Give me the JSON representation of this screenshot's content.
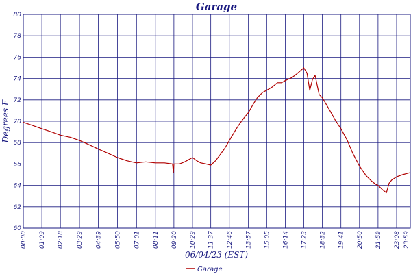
{
  "chart_data": {
    "type": "line",
    "title": "Garage",
    "xlabel": "06/04/23 (EST)",
    "ylabel": "Degrees F",
    "ylim": [
      60,
      80
    ],
    "yticks": [
      60,
      62,
      64,
      66,
      68,
      70,
      72,
      74,
      76,
      78,
      80
    ],
    "xticks": [
      "00:00",
      "01:09",
      "02:18",
      "03:29",
      "04:39",
      "05:50",
      "07:01",
      "08:11",
      "09:20",
      "10:29",
      "11:37",
      "12:46",
      "13:57",
      "15:05",
      "16:14",
      "17:23",
      "18:32",
      "19:41",
      "20:50",
      "21:59",
      "23:08",
      "23:59"
    ],
    "grid": true,
    "legend_position": "bottom-center",
    "colors": {
      "line": "#b00000",
      "grid": "#1a1a80",
      "text": "#1a1a80"
    },
    "series": [
      {
        "name": "Garage",
        "x": [
          "00:00",
          "00:35",
          "01:09",
          "01:45",
          "02:18",
          "02:55",
          "03:29",
          "04:05",
          "04:39",
          "05:15",
          "05:50",
          "06:25",
          "07:01",
          "07:35",
          "08:11",
          "08:45",
          "09:15",
          "09:18",
          "09:20",
          "09:40",
          "10:00",
          "10:29",
          "10:45",
          "11:00",
          "11:20",
          "11:37",
          "11:55",
          "12:10",
          "12:30",
          "12:46",
          "13:05",
          "13:20",
          "13:40",
          "13:57",
          "14:15",
          "14:30",
          "14:50",
          "15:05",
          "15:25",
          "15:45",
          "16:00",
          "16:14",
          "16:40",
          "17:00",
          "17:23",
          "17:35",
          "17:45",
          "17:55",
          "18:05",
          "18:20",
          "18:32",
          "19:00",
          "19:20",
          "19:41",
          "20:05",
          "20:25",
          "20:50",
          "21:15",
          "21:35",
          "21:50",
          "21:59",
          "22:15",
          "22:30",
          "22:40",
          "22:50",
          "23:08",
          "23:30",
          "23:59"
        ],
        "y": [
          69.9,
          69.6,
          69.3,
          69.0,
          68.7,
          68.5,
          68.2,
          67.8,
          67.4,
          67.0,
          66.6,
          66.3,
          66.1,
          66.2,
          66.1,
          66.1,
          66.0,
          65.2,
          66.0,
          66.0,
          66.2,
          66.6,
          66.3,
          66.1,
          66.0,
          65.9,
          66.3,
          66.8,
          67.5,
          68.2,
          69.0,
          69.6,
          70.3,
          70.8,
          71.6,
          72.2,
          72.7,
          72.9,
          73.2,
          73.6,
          73.6,
          73.8,
          74.1,
          74.5,
          75.0,
          74.5,
          72.9,
          73.9,
          74.3,
          72.5,
          72.2,
          71.0,
          70.1,
          69.3,
          68.2,
          67.0,
          65.8,
          64.9,
          64.4,
          64.1,
          64.0,
          63.6,
          63.3,
          64.2,
          64.5,
          64.8,
          65.0,
          65.2
        ]
      }
    ]
  }
}
